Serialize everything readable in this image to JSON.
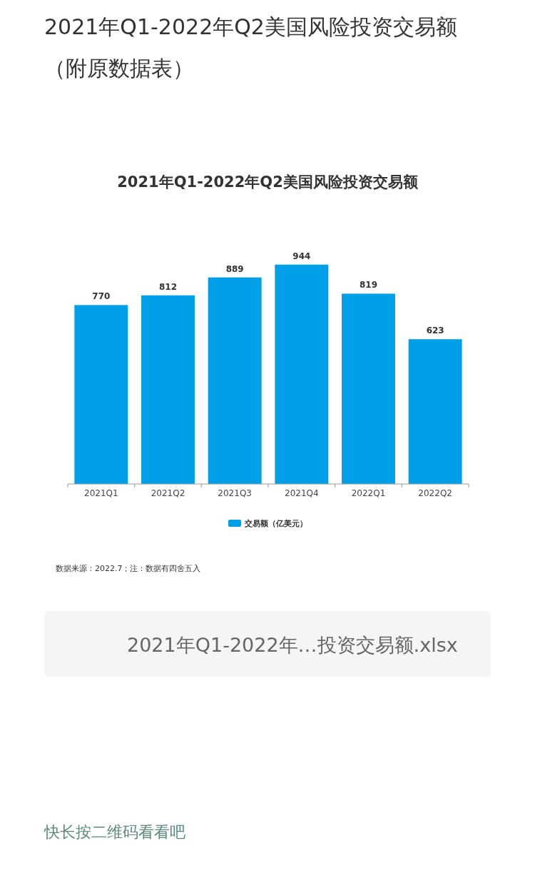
{
  "chart_data": {
    "type": "bar",
    "title": "2021年Q1-2022年Q2美国风险投资交易额（附原数据表）",
    "subtitle": "2021年Q1-2022年Q2美国风险投资交易额",
    "categories": [
      "2021Q1",
      "2021Q2",
      "2021Q3",
      "2021Q4",
      "2022Q1",
      "2022Q2"
    ],
    "series": [
      {
        "name": "交易额（亿美元）",
        "color": "#00a0e9",
        "values": [
          770,
          812,
          889,
          944,
          819,
          623
        ]
      }
    ],
    "data_labels": true,
    "legend": "bottom",
    "grid": false,
    "annotations": [
      "数据来源：2022.7；注：数据有四舍五入",
      "2021年Q1-2022年…投资交易额.xlsx",
      "快长按二维码看看吧"
    ]
  }
}
